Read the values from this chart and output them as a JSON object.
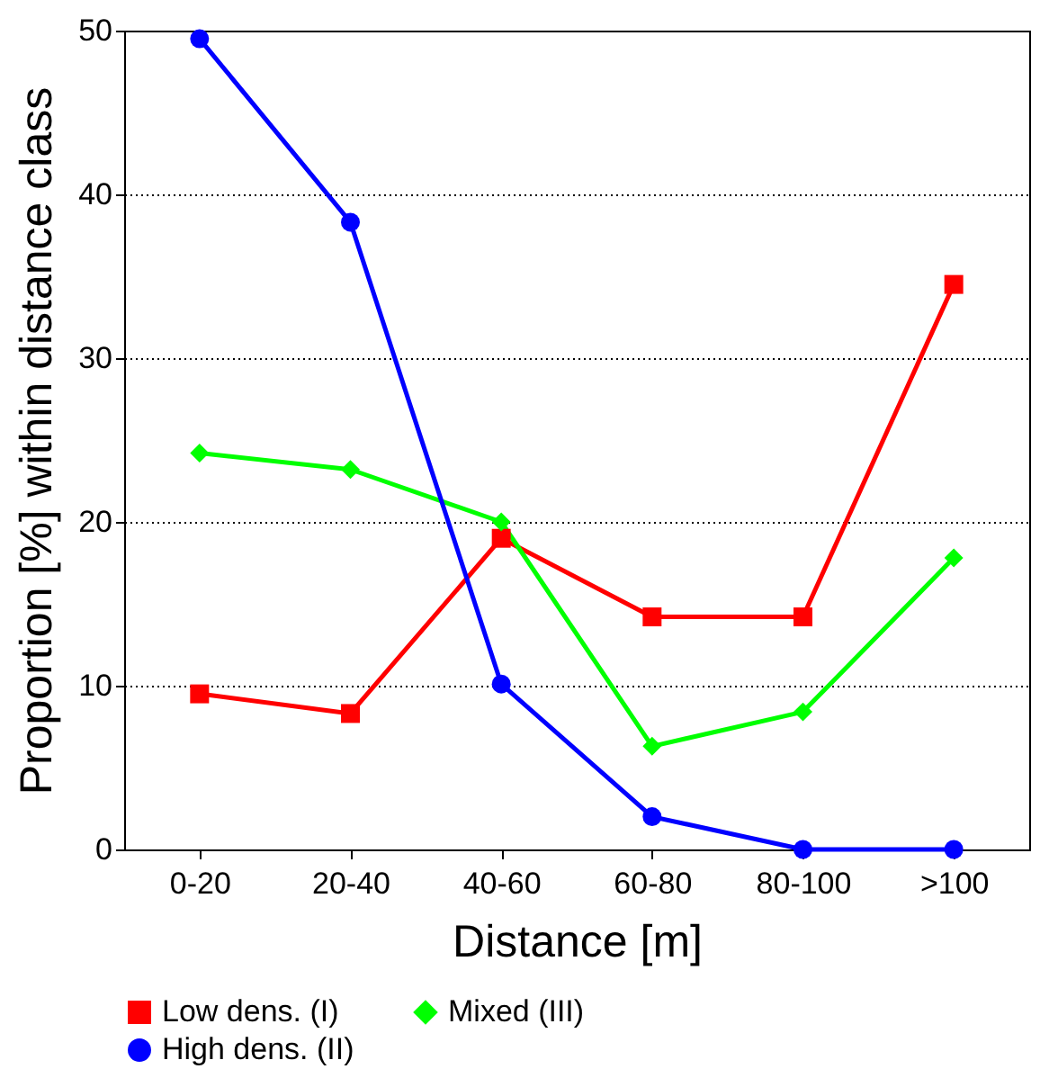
{
  "chart_data": {
    "type": "line",
    "xlabel": "Distance [m]",
    "ylabel": "Proportion [%] within distance class",
    "categories": [
      "0-20",
      "20-40",
      "40-60",
      "60-80",
      "80-100",
      ">100"
    ],
    "series": [
      {
        "name": "Low dens. (I)",
        "color": "#ff0000",
        "marker": "square",
        "values": [
          9.5,
          8.3,
          19,
          14.2,
          14.2,
          34.5
        ]
      },
      {
        "name": "Mixed (III)",
        "color": "#00ff00",
        "marker": "diamond",
        "values": [
          24.2,
          23.2,
          20,
          6.3,
          8.4,
          17.8
        ]
      },
      {
        "name": "High dens. (II)",
        "color": "#0000ff",
        "marker": "circle",
        "values": [
          49.5,
          38.3,
          10.1,
          2,
          0,
          0
        ]
      }
    ],
    "ylim": [
      0,
      50
    ],
    "yticks": [
      0,
      10,
      20,
      30,
      40,
      50
    ],
    "grid": "y",
    "legend": "bottom",
    "line_style": "solid"
  }
}
